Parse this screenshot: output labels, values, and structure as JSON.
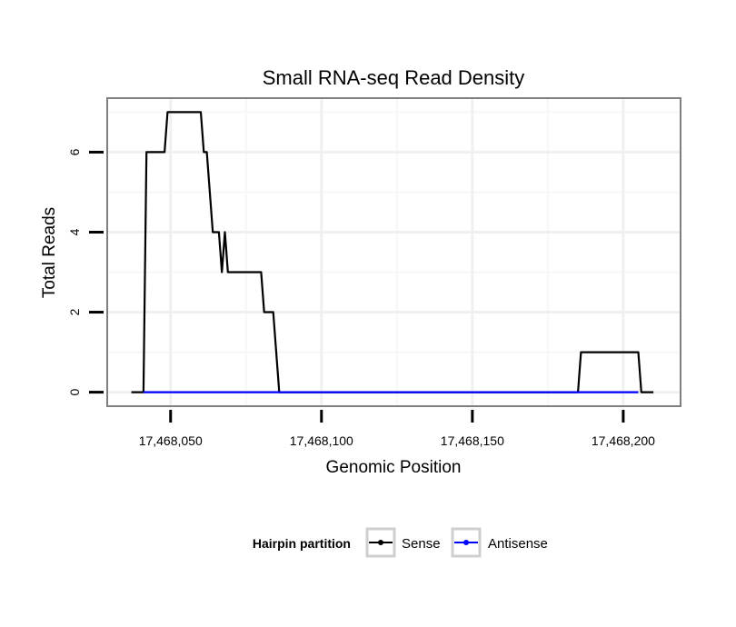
{
  "chart_data": {
    "type": "line",
    "title": "Small RNA-seq Read Density",
    "xlabel": "Genomic Position",
    "ylabel": "Total Reads",
    "xlim": [
      17468029,
      17468219
    ],
    "ylim": [
      -0.35,
      7.35
    ],
    "x_ticks": [
      17468050,
      17468100,
      17468150,
      17468200
    ],
    "x_tick_labels": [
      "17,468,050",
      "17,468,100",
      "17,468,150",
      "17,468,200"
    ],
    "y_ticks": [
      0,
      2,
      4,
      6
    ],
    "y_tick_labels": [
      "0",
      "2",
      "4",
      "6"
    ],
    "grid": true,
    "legend": {
      "title": "Hairpin partition",
      "position": "bottom",
      "entries": [
        {
          "label": "Sense",
          "color": "#000000"
        },
        {
          "label": "Antisense",
          "color": "#0000ff"
        }
      ]
    },
    "series": [
      {
        "name": "Sense",
        "color": "#000000",
        "x": [
          17468037,
          17468041,
          17468042,
          17468048,
          17468049,
          17468060,
          17468061,
          17468062,
          17468064,
          17468066,
          17468067,
          17468068,
          17468069,
          17468080,
          17468081,
          17468084,
          17468085,
          17468086,
          17468185,
          17468186,
          17468205,
          17468206,
          17468210
        ],
        "y": [
          0,
          0,
          6,
          6,
          7,
          7,
          6,
          6,
          4,
          4,
          3,
          4,
          3,
          3,
          2,
          2,
          1,
          0,
          0,
          1,
          1,
          0,
          0
        ]
      },
      {
        "name": "Antisense",
        "color": "#0000ff",
        "x": [
          17468041,
          17468205
        ],
        "y": [
          0,
          0
        ]
      }
    ]
  }
}
